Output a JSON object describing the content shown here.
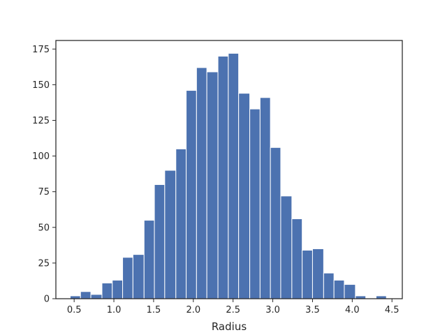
{
  "chart_data": {
    "type": "bar",
    "title": "",
    "xlabel": "Radius",
    "ylabel": "",
    "bar_color": "#4c72b0",
    "xlim": [
      0.27,
      4.63
    ],
    "ylim": [
      0,
      181
    ],
    "xticks": [
      0.5,
      1.0,
      1.5,
      2.0,
      2.5,
      3.0,
      3.5,
      4.0,
      4.5
    ],
    "xtick_labels": [
      "0.5",
      "1.0",
      "1.5",
      "2.0",
      "2.5",
      "3.0",
      "3.5",
      "4.0",
      "4.5"
    ],
    "yticks": [
      0,
      25,
      50,
      75,
      100,
      125,
      150,
      175
    ],
    "ytick_labels": [
      "0",
      "25",
      "50",
      "75",
      "100",
      "125",
      "150",
      "175"
    ],
    "bin_edges": [
      0.45,
      0.58,
      0.71,
      0.85,
      0.98,
      1.11,
      1.24,
      1.38,
      1.51,
      1.64,
      1.78,
      1.91,
      2.04,
      2.17,
      2.31,
      2.44,
      2.57,
      2.71,
      2.84,
      2.97,
      3.1,
      3.24,
      3.37,
      3.5,
      3.64,
      3.77,
      3.9,
      4.04,
      4.17,
      4.3,
      4.43
    ],
    "values": [
      2,
      5,
      3,
      11,
      13,
      29,
      31,
      55,
      80,
      90,
      105,
      146,
      162,
      159,
      170,
      172,
      144,
      133,
      141,
      106,
      72,
      56,
      34,
      35,
      18,
      13,
      10,
      2,
      0,
      2
    ],
    "grid": false
  }
}
